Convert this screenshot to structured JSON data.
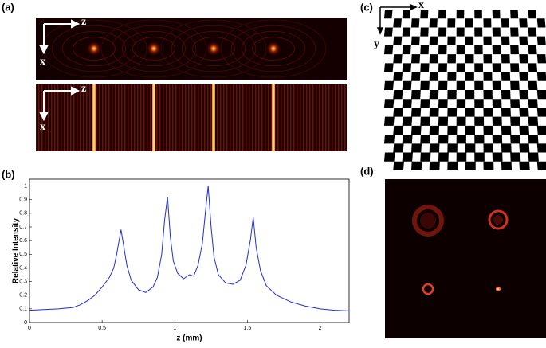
{
  "panels": {
    "a": {
      "label": "(a)",
      "top_axes": [
        "z",
        "x"
      ],
      "bottom_axes": [
        "z",
        "x"
      ]
    },
    "b": {
      "label": "(b)"
    },
    "c": {
      "label": "(c)",
      "axes": [
        "x",
        "y"
      ]
    },
    "d": {
      "label": "(d)"
    }
  },
  "chart_data": {
    "type": "line",
    "color": "#1f2fd6",
    "xlabel": "z (mm)",
    "ylabel": "Relative Intensity",
    "x": [
      0,
      0.1,
      0.2,
      0.3,
      0.35,
      0.4,
      0.45,
      0.5,
      0.55,
      0.58,
      0.6,
      0.62,
      0.63,
      0.65,
      0.67,
      0.7,
      0.75,
      0.8,
      0.85,
      0.88,
      0.91,
      0.93,
      0.95,
      0.97,
      0.99,
      1.02,
      1.06,
      1.1,
      1.13,
      1.16,
      1.19,
      1.21,
      1.23,
      1.25,
      1.27,
      1.3,
      1.35,
      1.4,
      1.45,
      1.49,
      1.52,
      1.54,
      1.56,
      1.59,
      1.63,
      1.7,
      1.8,
      1.9,
      2.0,
      2.1,
      2.2
    ],
    "values": [
      0.09,
      0.095,
      0.1,
      0.11,
      0.13,
      0.16,
      0.2,
      0.26,
      0.33,
      0.4,
      0.5,
      0.62,
      0.68,
      0.55,
      0.42,
      0.31,
      0.24,
      0.22,
      0.26,
      0.33,
      0.5,
      0.75,
      0.92,
      0.62,
      0.45,
      0.36,
      0.32,
      0.35,
      0.34,
      0.42,
      0.58,
      0.8,
      1.0,
      0.7,
      0.48,
      0.35,
      0.29,
      0.28,
      0.31,
      0.42,
      0.6,
      0.77,
      0.55,
      0.38,
      0.27,
      0.2,
      0.15,
      0.12,
      0.1,
      0.09,
      0.085
    ],
    "xlim": [
      0,
      2.2
    ],
    "xticks": [
      0,
      0.5,
      1,
      1.5,
      2
    ],
    "ylim": [
      0,
      1.05
    ],
    "yticks": [
      0,
      0.1,
      0.2,
      0.3,
      0.4,
      0.5,
      0.6,
      0.7,
      0.8,
      0.9,
      1
    ]
  }
}
